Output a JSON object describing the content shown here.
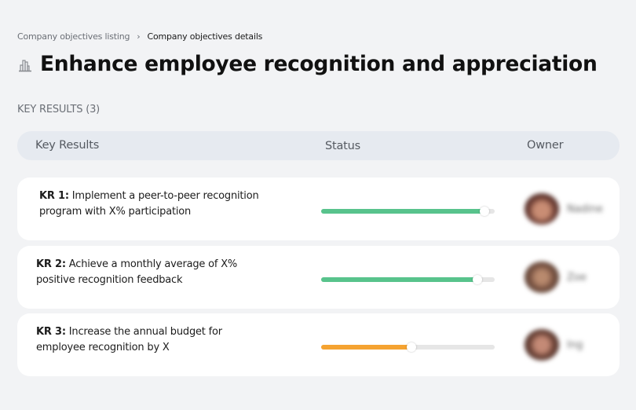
{
  "breadcrumb": {
    "items": [
      {
        "label": "Company objectives listing"
      },
      {
        "label": "Company objectives details"
      }
    ],
    "separator": "›"
  },
  "header": {
    "icon": "company-building-icon",
    "title": "Enhance employee recognition and appreciation"
  },
  "section": {
    "label": "KEY RESULTS (3)"
  },
  "table": {
    "columns": [
      "Key Results",
      "Status",
      "Owner"
    ],
    "rows": [
      {
        "kr_label": "KR 1:",
        "description": "Implement a peer-to-peer recognition program with X% participation",
        "progress": 94,
        "progress_color": "#58c38c",
        "owner": "Nadine",
        "avatar_color": "#6a3b32"
      },
      {
        "kr_label": "KR 2:",
        "description": "Achieve a monthly average of X% positive recognition feedback",
        "progress": 90,
        "progress_color": "#58c38c",
        "owner": "Zoe",
        "avatar_color": "#7a5443"
      },
      {
        "kr_label": "KR 3:",
        "description": "Increase the annual budget for employee recognition by X",
        "progress": 52,
        "progress_color": "#f5a331",
        "owner": "Ing",
        "avatar_color": "#6e4438"
      }
    ]
  }
}
